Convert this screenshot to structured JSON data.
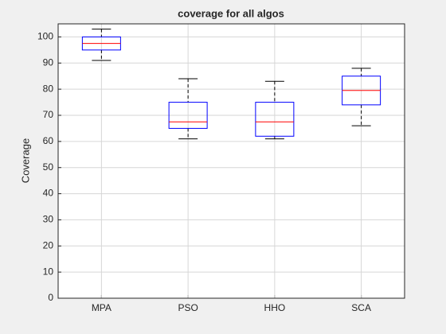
{
  "chart_data": {
    "type": "box",
    "title": "coverage for all algos",
    "y_label": "Coverage",
    "categories": [
      "MPA",
      "PSO",
      "HHO",
      "SCA"
    ],
    "whisker_low": [
      91,
      61,
      61,
      66
    ],
    "q1": [
      95,
      65,
      62,
      74
    ],
    "median": [
      97.5,
      67.5,
      67.5,
      79.5
    ],
    "q3": [
      100,
      75,
      75,
      85
    ],
    "whisker_high": [
      103,
      84,
      83,
      88
    ],
    "box_color": "#0000ff",
    "median_color": "#ff0000",
    "whisker_color": "#000000",
    "ylim": [
      0,
      105
    ],
    "yticks": [
      0,
      10,
      20,
      30,
      40,
      50,
      60,
      70,
      80,
      90,
      100
    ],
    "grid": true
  }
}
